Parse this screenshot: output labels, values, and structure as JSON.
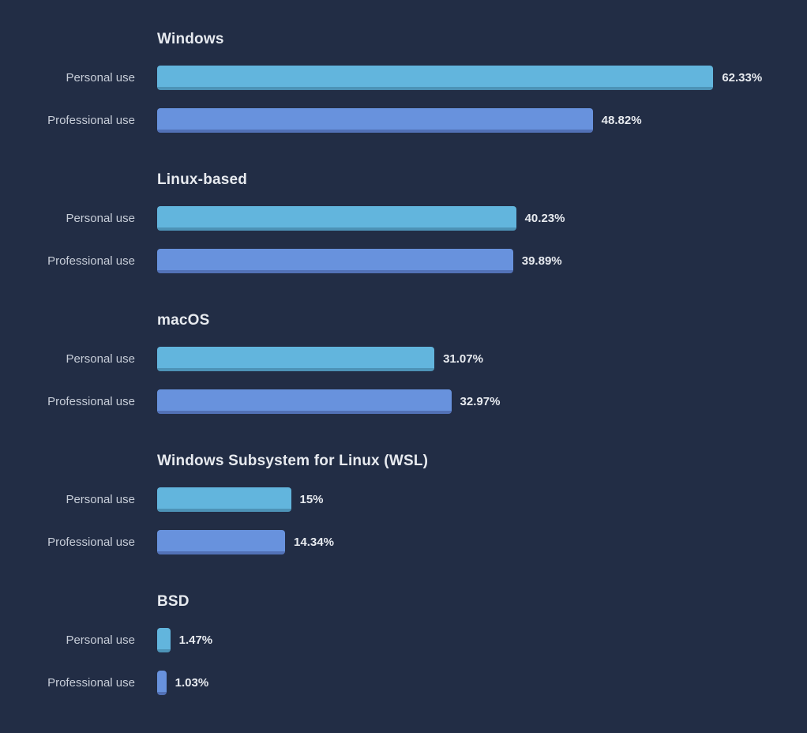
{
  "chart_data": {
    "type": "bar",
    "orientation": "horizontal",
    "unit": "%",
    "categories": [
      "Personal use",
      "Professional use"
    ],
    "legend": "none",
    "grid": false,
    "axis_labels_shown": false,
    "series_colors": {
      "personal": "#62b5dd",
      "professional": "#6892dd"
    },
    "background_color": "#222d45",
    "groups": [
      {
        "os": "Windows",
        "personal": {
          "label": "Personal use",
          "value": 62.33,
          "value_text": "62.33%"
        },
        "professional": {
          "label": "Professional use",
          "value": 48.82,
          "value_text": "48.82%"
        }
      },
      {
        "os": "Linux-based",
        "personal": {
          "label": "Personal use",
          "value": 40.23,
          "value_text": "40.23%"
        },
        "professional": {
          "label": "Professional use",
          "value": 39.89,
          "value_text": "39.89%"
        }
      },
      {
        "os": "macOS",
        "personal": {
          "label": "Personal use",
          "value": 31.07,
          "value_text": "31.07%"
        },
        "professional": {
          "label": "Professional use",
          "value": 32.97,
          "value_text": "32.97%"
        }
      },
      {
        "os": "Windows Subsystem for Linux (WSL)",
        "personal": {
          "label": "Personal use",
          "value": 15,
          "value_text": "15%"
        },
        "professional": {
          "label": "Professional use",
          "value": 14.34,
          "value_text": "14.34%"
        }
      },
      {
        "os": "BSD",
        "personal": {
          "label": "Personal use",
          "value": 1.47,
          "value_text": "1.47%"
        },
        "professional": {
          "label": "Professional use",
          "value": 1.03,
          "value_text": "1.03%"
        }
      }
    ]
  }
}
